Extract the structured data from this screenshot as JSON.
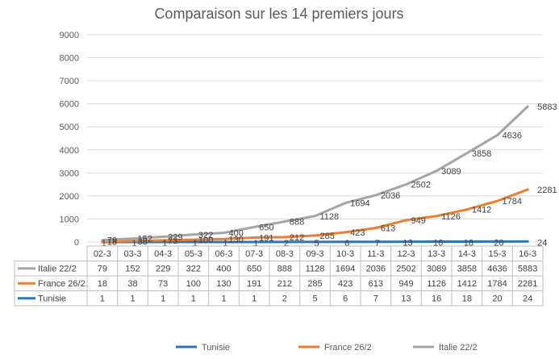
{
  "chart_data": {
    "type": "line",
    "title": "Comparaison sur les 14 premiers jours",
    "categories": [
      "02-3",
      "03-3",
      "04-3",
      "05-3",
      "06-3",
      "07-3",
      "08-3",
      "09-3",
      "10-3",
      "11-3",
      "12-3",
      "13-3",
      "14-3",
      "15-3",
      "16-3"
    ],
    "ylim": [
      0,
      9000
    ],
    "yticks": [
      0,
      1000,
      2000,
      3000,
      4000,
      5000,
      6000,
      7000,
      8000,
      9000
    ],
    "grid": true,
    "legend_position": "bottom",
    "series": [
      {
        "name": "Tunisie",
        "color": "#2E75B6",
        "values": [
          1,
          1,
          1,
          1,
          1,
          1,
          2,
          5,
          6,
          7,
          13,
          16,
          18,
          20,
          24
        ]
      },
      {
        "name": "France 26/2",
        "color": "#ED7D31",
        "values": [
          18,
          38,
          73,
          100,
          130,
          191,
          212,
          285,
          423,
          613,
          949,
          1126,
          1412,
          1784,
          2281
        ]
      },
      {
        "name": "Italie 22/2",
        "color": "#A5A5A5",
        "values": [
          79,
          152,
          229,
          322,
          400,
          650,
          888,
          1128,
          1694,
          2036,
          2502,
          3089,
          3858,
          4636,
          5883
        ]
      }
    ],
    "table_order": [
      "Italie 22/2",
      "France 26/2",
      "Tunisie"
    ]
  }
}
